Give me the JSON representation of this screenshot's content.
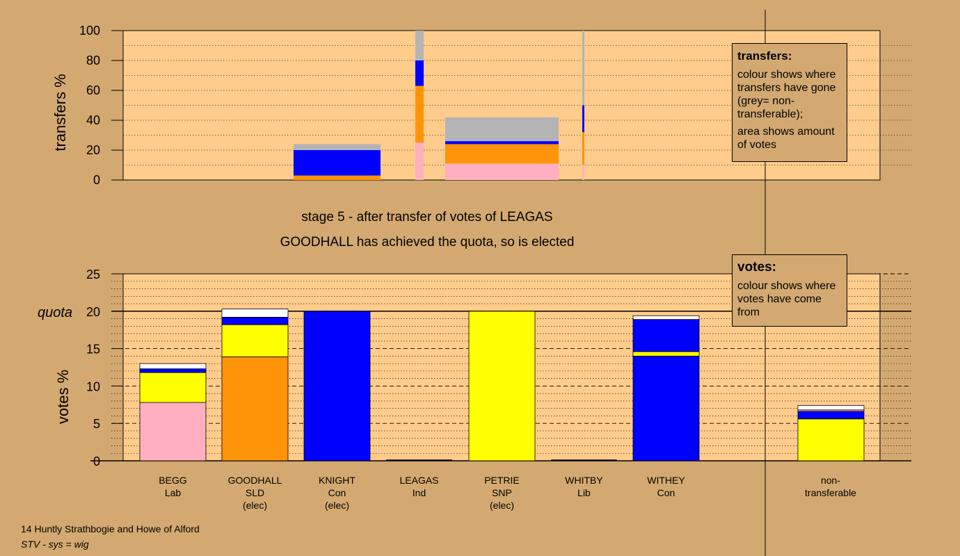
{
  "stage": {
    "title": "stage 5 - after transfer of votes of LEAGAS",
    "subtitle": "GOODHALL has achieved the quota, so is elected"
  },
  "legends": {
    "transfers": {
      "title": "transfers:",
      "line1": "colour shows where transfers have gone (grey= non-transferable);",
      "line2": "area shows amount of votes"
    },
    "votes": {
      "title": "votes:",
      "line1": "colour shows where votes have come from"
    }
  },
  "footer": {
    "line1": "14 Huntly Strathbogie and Howe of Alford",
    "line2": "STV - sys = wig"
  },
  "colors": {
    "Lab": "#ffb0c0",
    "SLD": "#ff9408",
    "Con": "#0000ff",
    "SNP": "#ffff00",
    "nontransferable": "#ffffff",
    "transfers_nontransferable": "#b4b4b4",
    "plot_bg": "#ffcc8c",
    "page_bg": "#d4a971"
  },
  "chart_data": [
    {
      "type": "bar",
      "title": "",
      "xlabel": "",
      "ylabel": "transfers %",
      "ylim": [
        0,
        100
      ],
      "yticks": [
        0,
        20,
        40,
        60,
        80,
        100
      ],
      "grid": "dotted",
      "note": "transfer bars: bar width proportional to votes, colour shows destination",
      "bars": [
        {
          "candidate": "GOODHALL",
          "x_range": [
            "KNIGHT-left",
            "LEAGAS-left"
          ],
          "segments": [
            {
              "to": "SLD",
              "value": 3
            },
            {
              "to": "Con",
              "value": 17
            },
            {
              "to": "nontransferable",
              "value": 4
            }
          ]
        },
        {
          "candidate": "LEAGAS-thin",
          "segments": [
            {
              "to": "Lab",
              "value": 25
            },
            {
              "to": "SLD",
              "value": 38
            },
            {
              "to": "Con",
              "value": 17
            },
            {
              "to": "nontransferable",
              "value": 20
            }
          ]
        },
        {
          "candidate": "PETRIE",
          "segments": [
            {
              "to": "Lab",
              "value": 11
            },
            {
              "to": "SLD",
              "value": 13
            },
            {
              "to": "Con",
              "value": 2
            },
            {
              "to": "nontransferable",
              "value": 16
            }
          ]
        },
        {
          "candidate": "WHITBY-thin",
          "segments": [
            {
              "to": "Lab",
              "value": 10
            },
            {
              "to": "SLD",
              "value": 22
            },
            {
              "to": "Con",
              "value": 18
            },
            {
              "to": "nontransferable",
              "value": 50
            }
          ]
        }
      ]
    },
    {
      "type": "bar",
      "title": "",
      "xlabel": "",
      "ylabel": "votes %",
      "ylim": [
        0,
        25
      ],
      "yticks": [
        0,
        5,
        10,
        15,
        20,
        25
      ],
      "quota": 20,
      "quota_label": "quota",
      "grid": "dashed",
      "categories": [
        {
          "name": "BEGG",
          "party": "Lab",
          "status": ""
        },
        {
          "name": "GOODHALL",
          "party": "SLD",
          "status": "(elec)"
        },
        {
          "name": "KNIGHT",
          "party": "Con",
          "status": "(elec)"
        },
        {
          "name": "LEAGAS",
          "party": "Ind",
          "status": ""
        },
        {
          "name": "PETRIE",
          "party": "SNP",
          "status": "(elec)"
        },
        {
          "name": "WHITBY",
          "party": "Lib",
          "status": ""
        },
        {
          "name": "WITHEY",
          "party": "Con",
          "status": ""
        }
      ],
      "nontransferable_label": "non-transferable",
      "stacks": [
        {
          "candidate": "BEGG",
          "segments": [
            {
              "from": "Lab",
              "value": 7.8
            },
            {
              "from": "SNP",
              "value": 4.0
            },
            {
              "from": "Con",
              "value": 0.5
            },
            {
              "from": "nontransferable",
              "value": 0.7
            }
          ]
        },
        {
          "candidate": "GOODHALL",
          "segments": [
            {
              "from": "SLD",
              "value": 13.9
            },
            {
              "from": "SNP",
              "value": 4.3
            },
            {
              "from": "Con",
              "value": 1.0
            },
            {
              "from": "nontransferable",
              "value": 1.1
            }
          ]
        },
        {
          "candidate": "KNIGHT",
          "segments": [
            {
              "from": "Con",
              "value": 20.0
            }
          ]
        },
        {
          "candidate": "LEAGAS",
          "segments": []
        },
        {
          "candidate": "PETRIE",
          "segments": [
            {
              "from": "SNP",
              "value": 20.0
            }
          ]
        },
        {
          "candidate": "WHITBY",
          "segments": []
        },
        {
          "candidate": "WITHEY",
          "segments": [
            {
              "from": "Con",
              "value": 14.0
            },
            {
              "from": "SNP",
              "value": 0.6
            },
            {
              "from": "Con",
              "value": 4.3
            },
            {
              "from": "nontransferable",
              "value": 0.5
            }
          ]
        },
        {
          "candidate": "non-transferable",
          "segments": [
            {
              "from": "SNP",
              "value": 5.6
            },
            {
              "from": "Con",
              "value": 1.0
            },
            {
              "from": "Lab",
              "value": 0.2
            },
            {
              "from": "nontransferable",
              "value": 0.6
            }
          ]
        }
      ]
    }
  ]
}
